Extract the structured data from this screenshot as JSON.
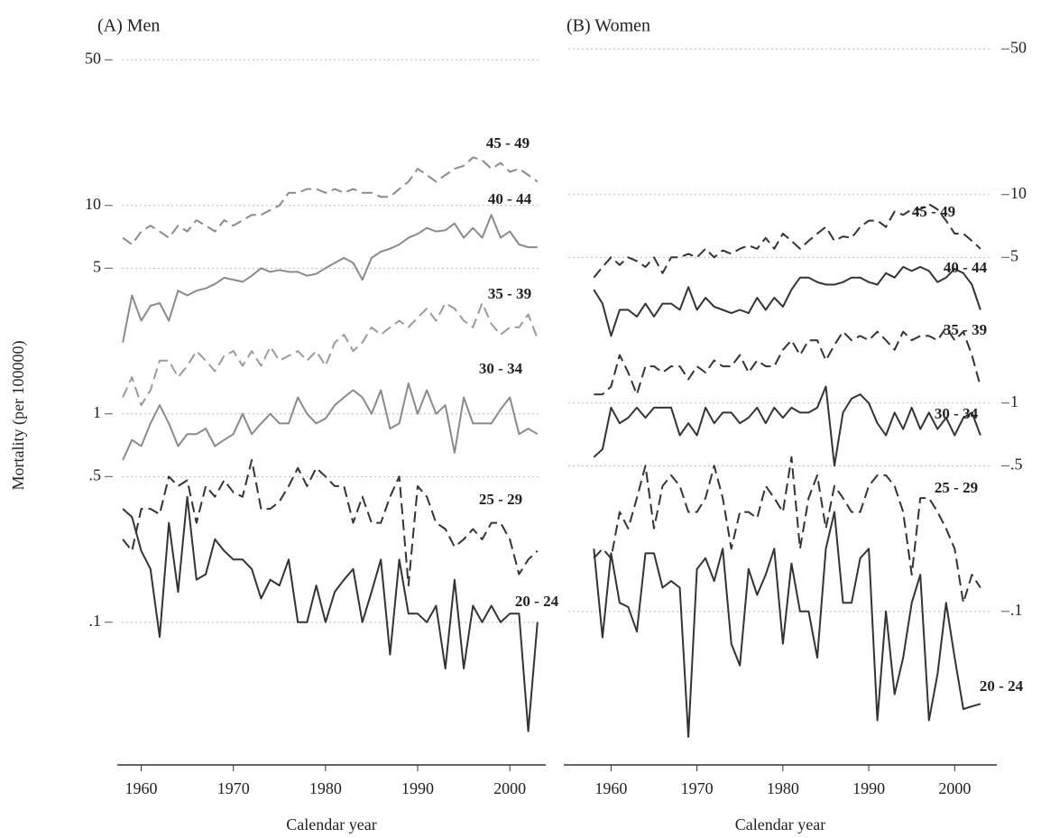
{
  "chart_data": [
    {
      "type": "line",
      "title": "(A) Men",
      "xlabel": "Calendar year",
      "ylabel": "Mortality (per 100000)",
      "log_scale": true,
      "grid": true,
      "y_axis_side": "left",
      "xlim": [
        1957.4,
        2003.9
      ],
      "xticks": [
        1960,
        1970,
        1980,
        1990,
        2000
      ],
      "ylim": [
        0.024,
        60
      ],
      "yticks": [
        50,
        10,
        5,
        1,
        {
          "value": 0.5,
          "label": ".5"
        },
        {
          "value": 0.1,
          "label": ".1"
        }
      ],
      "x": [
        1958,
        1959,
        1960,
        1961,
        1962,
        1963,
        1964,
        1965,
        1966,
        1967,
        1968,
        1969,
        1970,
        1971,
        1972,
        1973,
        1974,
        1975,
        1976,
        1977,
        1978,
        1979,
        1980,
        1981,
        1982,
        1983,
        1984,
        1985,
        1986,
        1987,
        1988,
        1989,
        1990,
        1991,
        1992,
        1993,
        1994,
        1995,
        1996,
        1997,
        1998,
        1999,
        2000,
        2001,
        2002,
        2003
      ],
      "series": [
        {
          "name": "45 - 49",
          "color": "#8a8a8a",
          "linestyle": "dashed",
          "values": [
            7,
            6.5,
            7.5,
            8,
            7.5,
            7,
            8,
            7.5,
            8.5,
            8,
            7.5,
            8.5,
            8,
            8.5,
            9,
            9,
            9.5,
            10,
            11.5,
            11.5,
            12,
            12,
            11.5,
            12,
            11.5,
            12,
            11.5,
            11.5,
            11,
            11,
            12,
            13,
            15,
            14,
            13,
            14,
            15,
            15.5,
            17,
            16.5,
            15,
            16,
            14.5,
            15,
            14,
            13
          ]
        },
        {
          "name": "40 - 44",
          "color": "#8a8a8a",
          "linestyle": "solid",
          "values": [
            2.2,
            3.7,
            2.8,
            3.3,
            3.4,
            2.8,
            3.9,
            3.7,
            3.9,
            4,
            4.2,
            4.5,
            4.4,
            4.3,
            4.6,
            5,
            4.8,
            4.9,
            4.8,
            4.8,
            4.6,
            4.7,
            5,
            5.3,
            5.6,
            5.3,
            4.4,
            5.6,
            6,
            6.2,
            6.5,
            7,
            7.3,
            7.8,
            7.5,
            7.6,
            8.2,
            7,
            7.8,
            7,
            9,
            7,
            7.5,
            6.5,
            6.3,
            6.3
          ]
        },
        {
          "name": "35 - 39",
          "color": "#9a9a9a",
          "linestyle": "dashed",
          "values": [
            1.2,
            1.5,
            1.1,
            1.3,
            1.8,
            1.8,
            1.5,
            1.7,
            2,
            1.8,
            1.6,
            1.9,
            2,
            1.7,
            2,
            1.7,
            2.1,
            1.8,
            1.9,
            2,
            1.8,
            2,
            1.7,
            2.2,
            2.4,
            2,
            2.2,
            2.6,
            2.4,
            2.6,
            2.8,
            2.6,
            2.9,
            3.2,
            2.8,
            3.4,
            3.2,
            2.8,
            2.6,
            3.4,
            2.7,
            2.4,
            2.6,
            2.6,
            3,
            2.3
          ]
        },
        {
          "name": "30 - 34",
          "color": "#8a8a8a",
          "linestyle": "solid",
          "values": [
            0.6,
            0.75,
            0.7,
            0.9,
            1.1,
            0.9,
            0.7,
            0.8,
            0.8,
            0.85,
            0.7,
            0.75,
            0.8,
            1,
            0.8,
            0.9,
            1,
            0.9,
            0.9,
            1.2,
            1,
            0.9,
            0.95,
            1.1,
            1.2,
            1.3,
            1.2,
            1,
            1.3,
            0.85,
            0.9,
            1.4,
            1,
            1.3,
            1,
            1.1,
            0.65,
            1.2,
            0.9,
            0.9,
            0.9,
            1.05,
            1.2,
            0.8,
            0.85,
            0.8
          ]
        },
        {
          "name": "25 - 29",
          "color": "#333333",
          "linestyle": "dashed",
          "values": [
            0.25,
            0.22,
            0.35,
            0.35,
            0.33,
            0.5,
            0.45,
            0.48,
            0.3,
            0.45,
            0.4,
            0.48,
            0.42,
            0.4,
            0.6,
            0.35,
            0.35,
            0.38,
            0.45,
            0.55,
            0.45,
            0.55,
            0.5,
            0.45,
            0.45,
            0.3,
            0.4,
            0.3,
            0.3,
            0.4,
            0.5,
            0.15,
            0.45,
            0.4,
            0.3,
            0.28,
            0.23,
            0.25,
            0.28,
            0.25,
            0.3,
            0.3,
            0.25,
            0.17,
            0.2,
            0.22
          ]
        },
        {
          "name": "20 - 24",
          "color": "#333333",
          "linestyle": "solid",
          "values": [
            0.35,
            0.32,
            0.22,
            0.18,
            0.085,
            0.3,
            0.14,
            0.4,
            0.16,
            0.17,
            0.25,
            0.22,
            0.2,
            0.2,
            0.18,
            0.13,
            0.16,
            0.15,
            0.2,
            0.1,
            0.1,
            0.15,
            0.1,
            0.14,
            0.16,
            0.18,
            0.1,
            0.14,
            0.2,
            0.07,
            0.2,
            0.11,
            0.11,
            0.1,
            0.12,
            0.06,
            0.16,
            0.06,
            0.12,
            0.1,
            0.12,
            0.1,
            0.11,
            0.11,
            0.03,
            0.1
          ]
        }
      ]
    },
    {
      "type": "line",
      "title": "(B) Women",
      "xlabel": "Calendar year",
      "log_scale": true,
      "grid": true,
      "y_axis_side": "right",
      "xlim": [
        1954.5,
        2004.9
      ],
      "xticks": [
        1960,
        1970,
        1980,
        1990,
        2000
      ],
      "ylim": [
        0.024,
        60
      ],
      "yticks": [
        50,
        10,
        5,
        1,
        {
          "value": 0.5,
          "label": ".5"
        },
        {
          "value": 0.1,
          "label": ".1"
        }
      ],
      "x": [
        1958,
        1959,
        1960,
        1961,
        1962,
        1963,
        1964,
        1965,
        1966,
        1967,
        1968,
        1969,
        1970,
        1971,
        1972,
        1973,
        1974,
        1975,
        1976,
        1977,
        1978,
        1979,
        1980,
        1981,
        1982,
        1983,
        1984,
        1985,
        1986,
        1987,
        1988,
        1989,
        1990,
        1991,
        1992,
        1993,
        1994,
        1995,
        1996,
        1997,
        1998,
        1999,
        2000,
        2001,
        2002,
        2003
      ],
      "series": [
        {
          "name": "45 - 49",
          "color": "#333333",
          "linestyle": "dashed",
          "values": [
            4,
            4.5,
            5,
            4.6,
            5,
            4.8,
            4.5,
            5,
            4.2,
            5,
            5,
            5.2,
            5,
            5.5,
            5,
            5.4,
            5.2,
            5.5,
            5.7,
            5.5,
            6.2,
            5.5,
            6.5,
            6,
            5.5,
            6,
            6.5,
            7,
            6,
            6.3,
            6.2,
            7,
            7.5,
            7.5,
            7,
            8.3,
            8,
            8.5,
            8.5,
            9,
            8.5,
            7.5,
            6.5,
            6.5,
            6,
            5.5
          ]
        },
        {
          "name": "40 - 44",
          "color": "#333333",
          "linestyle": "solid",
          "values": [
            3.5,
            3,
            2.1,
            2.8,
            2.8,
            2.6,
            3,
            2.6,
            3,
            3,
            2.8,
            3.6,
            2.8,
            3.2,
            2.9,
            2.8,
            2.7,
            2.8,
            2.7,
            3.2,
            2.8,
            3.2,
            2.9,
            3.5,
            4,
            4,
            3.8,
            3.7,
            3.7,
            3.8,
            4,
            4,
            3.8,
            3.7,
            4.2,
            4,
            4.5,
            4.3,
            4.5,
            4.3,
            3.8,
            4,
            4.4,
            4.2,
            3.7,
            2.8
          ]
        },
        {
          "name": "35 - 39",
          "color": "#333333",
          "linestyle": "dashed",
          "values": [
            1.1,
            1.1,
            1.2,
            1.7,
            1.4,
            1.1,
            1.5,
            1.5,
            1.4,
            1.5,
            1.5,
            1.3,
            1.5,
            1.4,
            1.6,
            1.5,
            1.5,
            1.7,
            1.4,
            1.6,
            1.5,
            1.5,
            1.8,
            2,
            1.7,
            2,
            2,
            1.6,
            1.9,
            2.2,
            2,
            2.1,
            2,
            2.2,
            2,
            1.8,
            2.2,
            2,
            2.1,
            2.1,
            2,
            2.3,
            2,
            2.2,
            1.7,
            1.2
          ]
        },
        {
          "name": "30 - 34",
          "color": "#333333",
          "linestyle": "solid",
          "values": [
            0.55,
            0.6,
            0.95,
            0.8,
            0.85,
            0.95,
            0.85,
            0.95,
            0.95,
            0.95,
            0.7,
            0.8,
            0.7,
            0.95,
            0.8,
            0.9,
            0.9,
            0.8,
            0.85,
            0.95,
            0.8,
            0.95,
            0.85,
            0.95,
            0.9,
            0.9,
            0.95,
            1.2,
            0.5,
            0.9,
            1.05,
            1.1,
            1,
            0.8,
            0.7,
            0.9,
            0.75,
            0.95,
            0.75,
            0.9,
            0.75,
            0.85,
            0.7,
            0.85,
            0.9,
            0.7
          ]
        },
        {
          "name": "25 - 29",
          "color": "#333333",
          "linestyle": "dashed",
          "values": [
            0.18,
            0.2,
            0.18,
            0.3,
            0.25,
            0.35,
            0.5,
            0.25,
            0.4,
            0.45,
            0.4,
            0.3,
            0.3,
            0.35,
            0.5,
            0.35,
            0.2,
            0.3,
            0.3,
            0.28,
            0.4,
            0.35,
            0.3,
            0.55,
            0.2,
            0.35,
            0.45,
            0.25,
            0.4,
            0.35,
            0.3,
            0.3,
            0.4,
            0.45,
            0.45,
            0.4,
            0.3,
            0.15,
            0.35,
            0.35,
            0.3,
            0.25,
            0.2,
            0.11,
            0.15,
            0.13
          ]
        },
        {
          "name": "20 - 24",
          "color": "#333333",
          "linestyle": "solid",
          "values": [
            0.2,
            0.075,
            0.19,
            0.11,
            0.105,
            0.08,
            0.19,
            0.19,
            0.13,
            0.14,
            0.13,
            0.025,
            0.16,
            0.18,
            0.14,
            0.2,
            0.07,
            0.055,
            0.16,
            0.12,
            0.15,
            0.2,
            0.07,
            0.17,
            0.1,
            0.1,
            0.06,
            0.2,
            0.3,
            0.11,
            0.11,
            0.18,
            0.2,
            0.03,
            0.1,
            0.04,
            0.06,
            0.11,
            0.15,
            0.03,
            0.05,
            0.11,
            0.06,
            0.034,
            0.035,
            0.036
          ]
        }
      ]
    }
  ]
}
